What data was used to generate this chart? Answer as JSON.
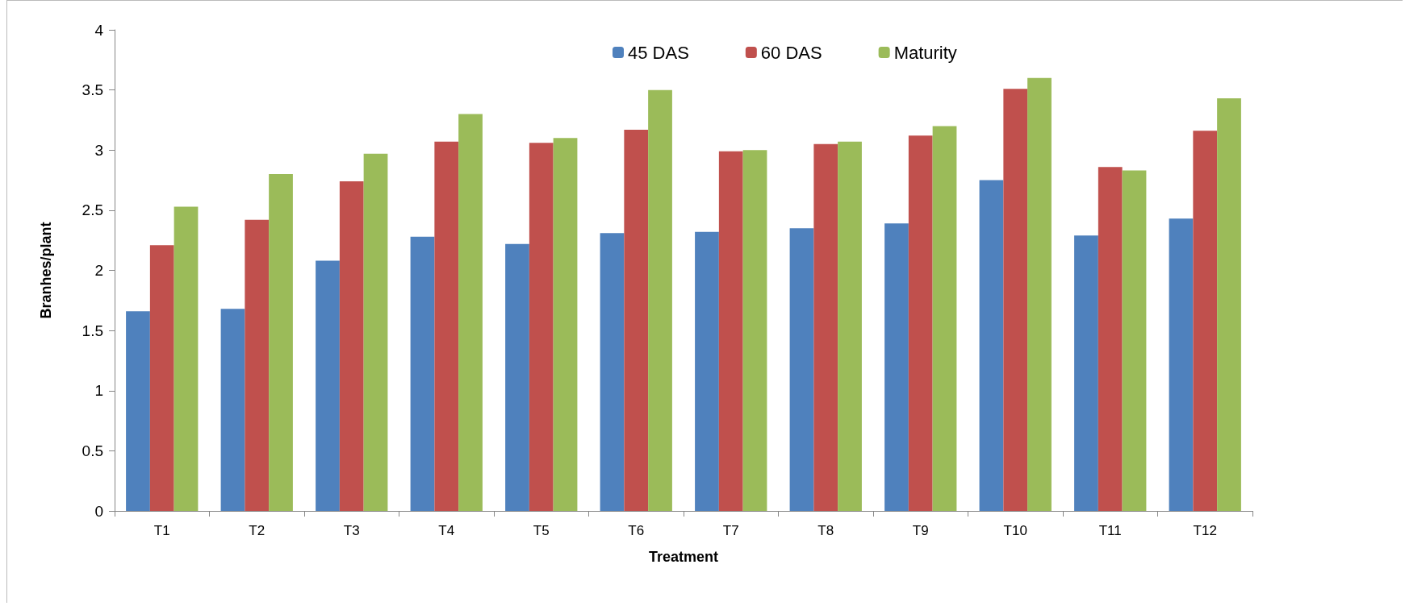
{
  "chart_data": {
    "type": "bar",
    "xlabel": "Treatment",
    "ylabel": "Branhes/plant",
    "categories": [
      "T1",
      "T2",
      "T3",
      "T4",
      "T5",
      "T6",
      "T7",
      "T8",
      "T9",
      "T10",
      "T11",
      "T12"
    ],
    "series": [
      {
        "name": "45 DAS",
        "color": "#4f81bd",
        "values": [
          1.66,
          1.68,
          2.08,
          2.28,
          2.22,
          2.31,
          2.32,
          2.35,
          2.39,
          2.75,
          2.29,
          2.43
        ]
      },
      {
        "name": "60 DAS",
        "color": "#c0504d",
        "values": [
          2.21,
          2.42,
          2.74,
          3.07,
          3.06,
          3.17,
          2.99,
          3.05,
          3.12,
          3.51,
          2.86,
          3.16
        ]
      },
      {
        "name": "Maturity",
        "color": "#9bbb59",
        "values": [
          2.53,
          2.8,
          2.97,
          3.3,
          3.1,
          3.5,
          3.0,
          3.07,
          3.2,
          3.6,
          2.83,
          3.43
        ]
      }
    ],
    "ylim": [
      0,
      4
    ],
    "yticks": [
      0,
      0.5,
      1,
      1.5,
      2,
      2.5,
      3,
      3.5,
      4
    ],
    "grid": false,
    "legend": "top"
  }
}
